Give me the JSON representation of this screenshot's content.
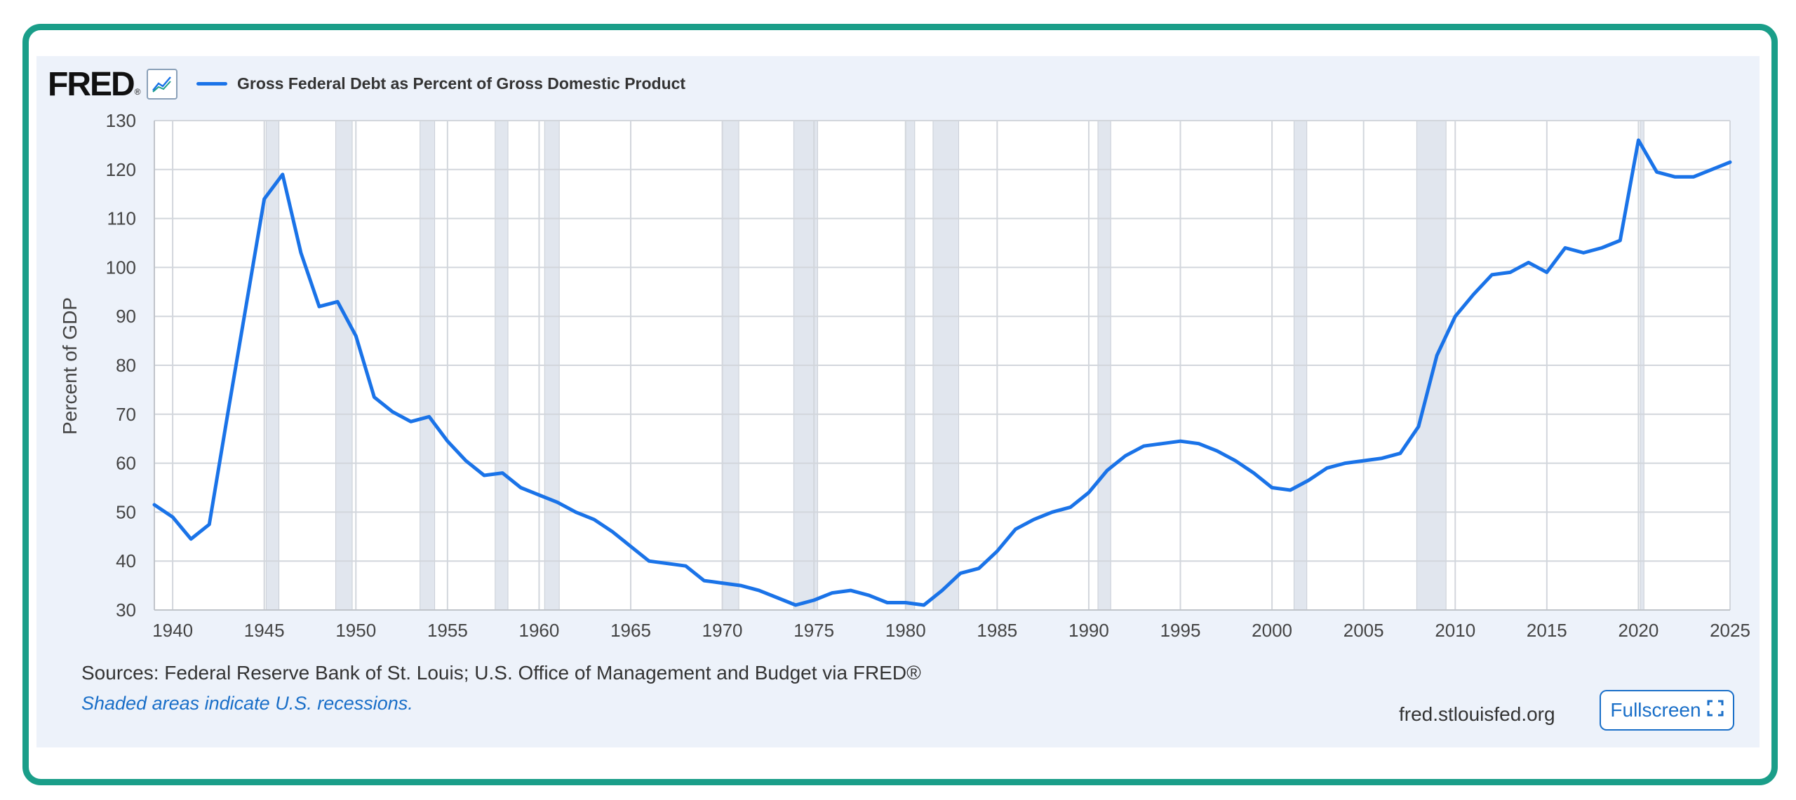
{
  "header": {
    "logo_text": "FRED",
    "logo_mark": "®",
    "graph_icon": "line-chart-icon"
  },
  "colors": {
    "series": "#1a73e8",
    "recession": "#e1e6ee",
    "panel": "#edf2fa",
    "border": "#1a9e89",
    "link": "#1a6fc8"
  },
  "chart_data": {
    "type": "line",
    "xlabel": "",
    "ylabel": "Percent of GDP",
    "ylim": [
      30,
      130
    ],
    "xlim": [
      1939,
      2025
    ],
    "grid": true,
    "legend": "top-left",
    "x_ticks": [
      "1940",
      "1945",
      "1950",
      "1955",
      "1960",
      "1965",
      "1970",
      "1975",
      "1980",
      "1985",
      "1990",
      "1995",
      "2000",
      "2005",
      "2010",
      "2015",
      "2020",
      "2025"
    ],
    "y_ticks": [
      "30",
      "40",
      "50",
      "60",
      "70",
      "80",
      "90",
      "100",
      "110",
      "120",
      "130"
    ],
    "series": [
      {
        "name": "Gross Federal Debt as Percent of Gross Domestic Product",
        "x": [
          1939,
          1940,
          1941,
          1942,
          1943,
          1944,
          1945,
          1946,
          1947,
          1948,
          1949,
          1950,
          1951,
          1952,
          1953,
          1954,
          1955,
          1956,
          1957,
          1958,
          1959,
          1960,
          1961,
          1962,
          1963,
          1964,
          1965,
          1966,
          1967,
          1968,
          1969,
          1970,
          1971,
          1972,
          1973,
          1974,
          1975,
          1976,
          1977,
          1978,
          1979,
          1980,
          1981,
          1982,
          1983,
          1984,
          1985,
          1986,
          1987,
          1988,
          1989,
          1990,
          1991,
          1992,
          1993,
          1994,
          1995,
          1996,
          1997,
          1998,
          1999,
          2000,
          2001,
          2002,
          2003,
          2004,
          2005,
          2006,
          2007,
          2008,
          2009,
          2010,
          2011,
          2012,
          2013,
          2014,
          2015,
          2016,
          2017,
          2018,
          2019,
          2020,
          2021,
          2022,
          2023,
          2024,
          2025
        ],
        "values": [
          51.5,
          49.0,
          44.5,
          47.5,
          70.0,
          92.0,
          114.0,
          119.0,
          103.0,
          92.0,
          93.0,
          86.0,
          73.5,
          70.5,
          68.5,
          69.5,
          64.5,
          60.5,
          57.5,
          58.0,
          55.0,
          53.5,
          52.0,
          50.0,
          48.5,
          46.0,
          43.0,
          40.0,
          39.5,
          39.0,
          36.0,
          35.5,
          35.0,
          34.0,
          32.5,
          31.0,
          32.0,
          33.5,
          34.0,
          33.0,
          31.5,
          31.5,
          31.0,
          34.0,
          37.5,
          38.5,
          42.0,
          46.5,
          48.5,
          50.0,
          51.0,
          54.0,
          58.5,
          61.5,
          63.5,
          64.0,
          64.5,
          64.0,
          62.5,
          60.5,
          58.0,
          55.0,
          54.5,
          56.5,
          59.0,
          60.0,
          60.5,
          61.0,
          62.0,
          67.5,
          82.0,
          90.0,
          94.5,
          98.5,
          99.0,
          101.0,
          99.0,
          104.0,
          103.0,
          104.0,
          105.5,
          126.0,
          119.5,
          118.5,
          118.5,
          120.0,
          121.5
        ]
      }
    ],
    "recessions": [
      [
        1945.1,
        1945.8
      ],
      [
        1948.9,
        1949.8
      ],
      [
        1953.5,
        1954.3
      ],
      [
        1957.6,
        1958.3
      ],
      [
        1960.3,
        1961.1
      ],
      [
        1970.0,
        1970.9
      ],
      [
        1973.9,
        1975.2
      ],
      [
        1980.0,
        1980.5
      ],
      [
        1981.5,
        1982.9
      ],
      [
        1990.5,
        1991.2
      ],
      [
        2001.2,
        2001.9
      ],
      [
        2007.9,
        2009.5
      ],
      [
        2020.1,
        2020.3
      ]
    ]
  },
  "footer": {
    "sources": "Sources: Federal Reserve Bank of St. Louis; U.S. Office of Management and Budget via FRED®",
    "recession_note": "Shaded areas indicate U.S. recessions.",
    "site": "fred.stlouisfed.org",
    "fullscreen_label": "Fullscreen",
    "fullscreen_icon": "expand-icon"
  }
}
